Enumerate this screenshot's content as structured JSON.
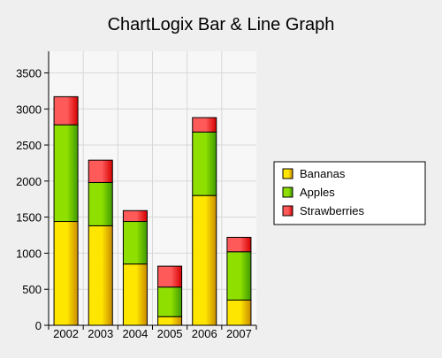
{
  "chart_data": {
    "type": "bar",
    "stacked": true,
    "title": "ChartLogix Bar & Line Graph",
    "categories": [
      "2002",
      "2003",
      "2004",
      "2005",
      "2006",
      "2007"
    ],
    "series": [
      {
        "name": "Bananas",
        "values": [
          1440,
          1380,
          850,
          120,
          1800,
          350
        ],
        "color": "#ffe600",
        "color_dark": "#c98a00"
      },
      {
        "name": "Apples",
        "values": [
          1340,
          600,
          590,
          410,
          880,
          670
        ],
        "color": "#8fe000",
        "color_dark": "#3f9a00"
      },
      {
        "name": "Strawberries",
        "values": [
          390,
          310,
          150,
          290,
          200,
          200
        ],
        "color": "#ff5a5a",
        "color_dark": "#d60000"
      }
    ],
    "y_ticks": [
      "0",
      "500",
      "1000",
      "1500",
      "2000",
      "2500",
      "3000",
      "3500"
    ],
    "ylim": [
      0,
      3800
    ],
    "grid": true,
    "legend_position": "right"
  }
}
